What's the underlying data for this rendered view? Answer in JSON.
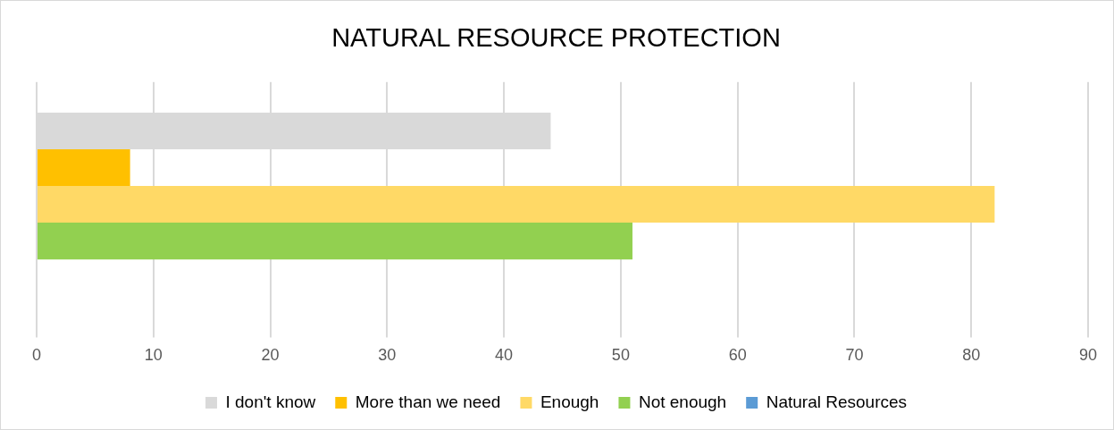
{
  "chart_data": {
    "type": "bar",
    "orientation": "horizontal",
    "title": "NATURAL RESOURCE PROTECTION",
    "categories": [
      null
    ],
    "series": [
      {
        "name": "I don't know",
        "color": "#d9d9d9",
        "values": [
          44
        ]
      },
      {
        "name": "More than we need",
        "color": "#ffc000",
        "values": [
          8
        ]
      },
      {
        "name": "Enough",
        "color": "#ffd966",
        "values": [
          82
        ]
      },
      {
        "name": "Not enough",
        "color": "#92d050",
        "values": [
          51
        ]
      },
      {
        "name": "Natural Resources",
        "color": "#5b9bd5",
        "values": [
          null
        ]
      }
    ],
    "xlim": [
      0,
      90
    ],
    "xticks": [
      0,
      10,
      20,
      30,
      40,
      50,
      60,
      70,
      80,
      90
    ],
    "grid": "x",
    "legend": "bottom"
  }
}
